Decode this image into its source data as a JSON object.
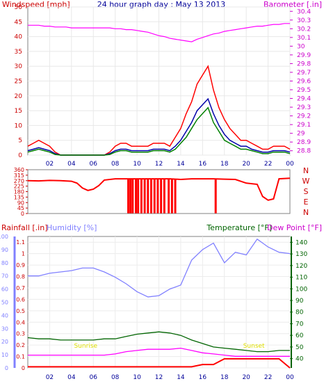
{
  "chart_data": [
    {
      "type": "line",
      "title": "24 hour graph day : May 13 2013",
      "ylabel": "Windspeed [mph]",
      "y2label": "Barometer [.in]",
      "x_ticks": [
        "02",
        "04",
        "06",
        "08",
        "10",
        "12",
        "14",
        "16",
        "18",
        "20",
        "22",
        "00"
      ],
      "ylim": [
        0,
        50
      ],
      "y_ticks": [
        0,
        5,
        10,
        15,
        20,
        25,
        30,
        35,
        40,
        45,
        50
      ],
      "y2lim": [
        28.75,
        30.45
      ],
      "y2_ticks": [
        "28.8",
        "28.9",
        "29",
        "29.1",
        "29.2",
        "29.3",
        "29.4",
        "29.5",
        "29.6",
        "29.7",
        "29.8",
        "29.9",
        "30",
        "30.1",
        "30.2",
        "30.3",
        "30.4"
      ],
      "x_hours": [
        0,
        0.5,
        1,
        1.5,
        2,
        2.5,
        3,
        3.5,
        4,
        4.5,
        5,
        5.5,
        6,
        6.5,
        7,
        7.5,
        8,
        8.5,
        9,
        9.5,
        10,
        10.5,
        11,
        11.5,
        12,
        12.5,
        13,
        13.5,
        14,
        14.5,
        15,
        15.5,
        16,
        16.5,
        17,
        17.5,
        18,
        18.5,
        19,
        19.5,
        20,
        20.5,
        21,
        21.5,
        22,
        22.5,
        23,
        23.5,
        24
      ],
      "series": [
        {
          "color": "#ff0000",
          "axis": "left",
          "values": [
            3,
            4,
            5,
            4,
            3,
            1,
            0,
            0,
            0,
            0,
            0,
            0,
            0,
            0,
            0,
            1,
            3,
            4,
            4,
            3,
            3,
            3,
            3,
            4,
            4,
            4,
            3,
            6,
            9,
            14,
            18,
            24,
            27,
            30,
            22,
            16,
            12,
            9,
            7,
            5,
            5,
            4,
            3,
            2,
            2,
            3,
            3,
            3,
            2
          ]
        },
        {
          "color": "#0000aa",
          "axis": "left",
          "values": [
            1.5,
            2,
            2.5,
            2,
            1.5,
            0.5,
            0,
            0,
            0,
            0,
            0,
            0,
            0,
            0,
            0,
            0.5,
            1.5,
            2,
            2,
            1.5,
            1.5,
            1.5,
            1.5,
            2,
            2,
            2,
            1.5,
            3,
            5,
            8,
            11,
            15,
            17,
            19,
            14,
            10,
            7,
            5,
            4,
            3,
            3,
            2,
            1.5,
            1,
            1,
            1.5,
            1.5,
            1.5,
            1
          ]
        },
        {
          "color": "#008000",
          "axis": "left",
          "values": [
            1,
            1.5,
            2,
            1.5,
            1,
            0.2,
            0,
            0,
            0,
            0,
            0,
            0,
            0,
            0,
            0,
            0.2,
            1,
            1.5,
            1.5,
            1,
            1,
            1,
            1,
            1.5,
            1.5,
            1.5,
            1,
            2,
            4,
            6,
            9,
            12,
            14,
            16,
            11,
            8,
            5,
            4,
            3,
            2,
            2,
            1.5,
            1,
            0.5,
            0.5,
            1,
            1,
            1,
            0.5
          ]
        },
        {
          "color": "#ff00ff",
          "axis": "right",
          "values": [
            30.24,
            30.24,
            30.24,
            30.23,
            30.23,
            30.22,
            30.22,
            30.22,
            30.21,
            30.21,
            30.21,
            30.21,
            30.21,
            30.21,
            30.21,
            30.21,
            30.2,
            30.2,
            30.19,
            30.19,
            30.18,
            30.17,
            30.16,
            30.14,
            30.12,
            30.11,
            30.09,
            30.08,
            30.07,
            30.06,
            30.05,
            30.08,
            30.1,
            30.12,
            30.14,
            30.15,
            30.17,
            30.18,
            30.19,
            30.2,
            30.21,
            30.22,
            30.23,
            30.23,
            30.24,
            30.25,
            30.25,
            30.26,
            30.26
          ]
        }
      ]
    },
    {
      "type": "line",
      "ylabel_right": "N W S E N",
      "y_ticks": [
        0,
        45,
        90,
        135,
        180,
        225,
        270,
        315,
        360
      ],
      "ylim": [
        0,
        360
      ],
      "x_ticks": [
        "02",
        "04",
        "06",
        "08",
        "10",
        "12",
        "14",
        "16",
        "18",
        "20",
        "22",
        "00"
      ],
      "x_hours": [
        0,
        1,
        2,
        3,
        4,
        4.5,
        5,
        5.5,
        6,
        6.5,
        7,
        8,
        9,
        10,
        11,
        12,
        13,
        14,
        15,
        16,
        17,
        18,
        19,
        20,
        21,
        21.5,
        22,
        22.5,
        23,
        24
      ],
      "series": [
        {
          "color": "#ff0000",
          "values": [
            270,
            268,
            272,
            270,
            265,
            250,
            210,
            190,
            200,
            230,
            275,
            285,
            285,
            285,
            285,
            285,
            285,
            280,
            285,
            285,
            285,
            282,
            280,
            250,
            240,
            140,
            110,
            120,
            285,
            290
          ]
        }
      ],
      "spikes_hours": [
        9.2,
        9.4,
        9.6,
        9.9,
        10.1,
        10.4,
        10.7,
        11.0,
        11.3,
        11.6,
        11.9,
        12.2,
        12.5,
        12.9,
        13.2,
        13.5,
        17.2
      ]
    },
    {
      "type": "line",
      "ylabel_left": "Rainfall [.in]",
      "ylabel_humidity": "Humidity [%]",
      "ylabel_temp": "Temperature [°F]",
      "ylabel_dew": "Dew Point [°F]",
      "x_ticks": [
        "02",
        "04",
        "06",
        "08",
        "10",
        "12",
        "14",
        "16",
        "18",
        "20",
        "22",
        "00"
      ],
      "rain_ticks": [
        "0",
        "0.1",
        "0.2",
        "0.3",
        "0.4",
        "0.5",
        "0.6",
        "0.7",
        "0.8",
        "0.9",
        "1",
        "1.1"
      ],
      "rain_lim": [
        0,
        1.15
      ],
      "humidity_ticks": [
        0,
        10,
        20,
        30,
        40,
        50,
        60,
        70,
        80,
        90,
        100
      ],
      "humidity_lim": [
        0,
        100
      ],
      "temp_ticks": [
        40,
        50,
        60,
        70,
        80,
        90,
        100,
        110,
        120,
        130,
        140
      ],
      "temp_lim": [
        32,
        145
      ],
      "annotations": [
        {
          "text": "Sunrise",
          "hour": 5.3
        },
        {
          "text": "Sunset",
          "hour": 20.7
        }
      ],
      "x_hours": [
        0,
        1,
        2,
        3,
        4,
        5,
        6,
        7,
        8,
        9,
        10,
        11,
        12,
        13,
        14,
        15,
        16,
        17,
        18,
        19,
        20,
        21,
        22,
        23,
        24
      ],
      "series": [
        {
          "name": "Humidity",
          "axis": "humidity",
          "color": "#8080ff",
          "values": [
            70,
            70,
            72,
            73,
            74,
            76,
            76,
            73,
            69,
            64,
            58,
            54,
            55,
            60,
            63,
            82,
            90,
            95,
            80,
            88,
            86,
            98,
            92,
            88,
            87
          ]
        },
        {
          "name": "Temperature",
          "axis": "temp",
          "color": "#006400",
          "values": [
            58,
            57,
            57,
            56,
            56,
            56,
            56,
            57,
            57,
            59,
            61,
            62,
            63,
            62,
            60,
            56,
            53,
            50,
            49,
            48,
            47,
            46,
            46,
            47,
            47
          ]
        },
        {
          "name": "Dew Point",
          "axis": "temp",
          "color": "#ff00ff",
          "values": [
            43,
            43,
            43,
            43,
            43,
            43,
            43,
            43,
            44,
            46,
            47,
            48,
            48,
            48,
            49,
            47,
            45,
            44,
            43,
            42,
            42,
            42,
            42,
            42,
            42
          ]
        },
        {
          "name": "Rainfall",
          "axis": "rain",
          "color": "#ff0000",
          "values": [
            0.01,
            0.01,
            0.01,
            0.01,
            0.01,
            0.01,
            0.01,
            0.01,
            0.01,
            0.01,
            0.01,
            0.01,
            0.01,
            0.01,
            0.01,
            0.01,
            0.03,
            0.03,
            0.08,
            0.08,
            0.08,
            0.08,
            0.08,
            0.08,
            0.0
          ]
        }
      ]
    }
  ]
}
